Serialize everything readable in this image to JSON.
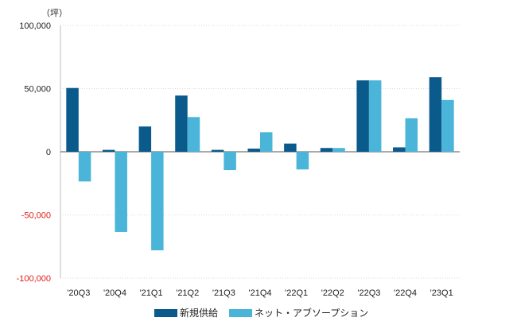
{
  "chart_data": {
    "type": "bar",
    "unit_label": "（坪）",
    "categories": [
      "'20Q3",
      "'20Q4",
      "'21Q1",
      "'21Q2",
      "'21Q3",
      "'21Q4",
      "'22Q1",
      "'22Q2",
      "'22Q3",
      "'22Q4",
      "'23Q1"
    ],
    "series": [
      {
        "name": "新規供給",
        "color": "#0a5a8c",
        "values": [
          50500,
          1500,
          20000,
          44500,
          1500,
          2500,
          6500,
          3000,
          56500,
          3500,
          59000
        ]
      },
      {
        "name": "ネット・アブソープション",
        "color": "#4ab5d8",
        "values": [
          -23500,
          -63500,
          -78000,
          27500,
          -14500,
          15500,
          -14000,
          3000,
          56500,
          26500,
          41000
        ]
      }
    ],
    "ylim": [
      -100000,
      100000
    ],
    "yticks": [
      {
        "value": 100000,
        "label": "100,000"
      },
      {
        "value": 50000,
        "label": "50,000"
      },
      {
        "value": 0,
        "label": "0"
      },
      {
        "value": -50000,
        "label": "-50,000"
      },
      {
        "value": -100000,
        "label": "-100,000"
      }
    ],
    "negative_tick_color": "#e0201b",
    "grid": true,
    "legend_position": "bottom"
  }
}
